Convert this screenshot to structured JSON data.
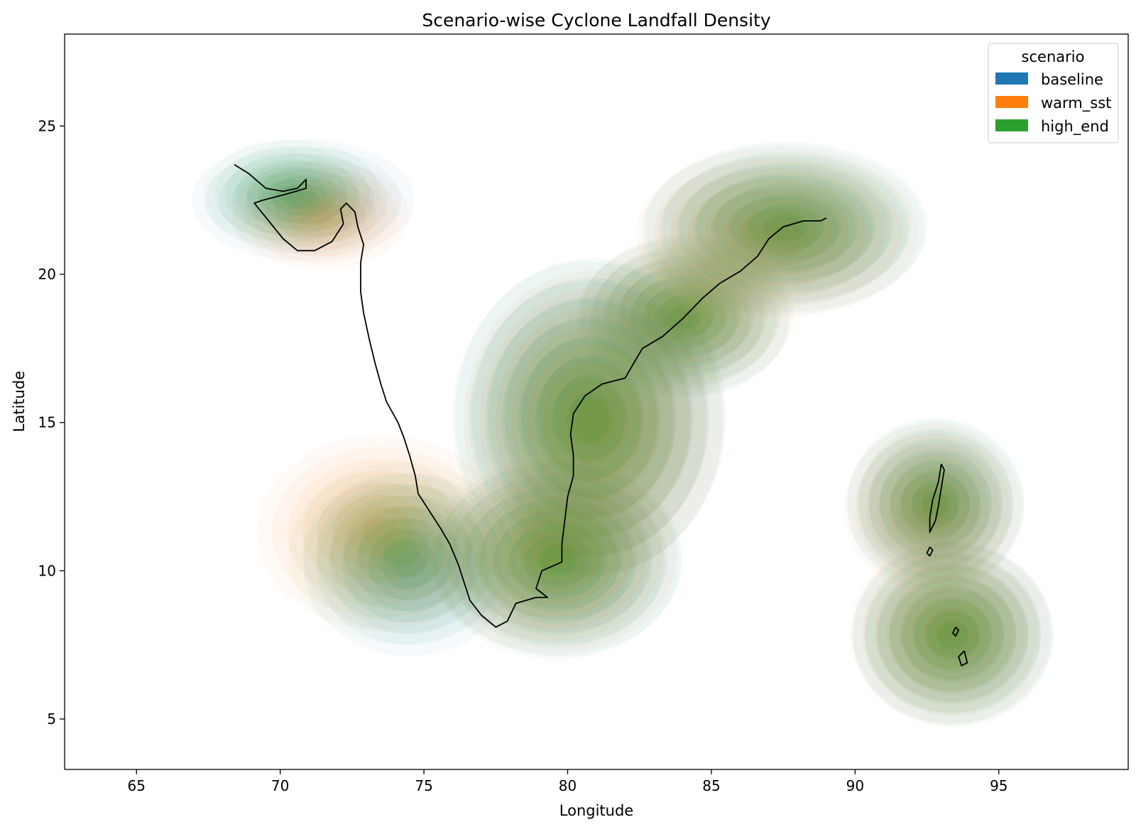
{
  "chart_data": {
    "type": "kde-density-map",
    "title": "Scenario-wise Cyclone Landfall Density",
    "xlabel": "Longitude",
    "ylabel": "Latitude",
    "xlim": [
      62.5,
      99.5
    ],
    "ylim": [
      3.3,
      28.1
    ],
    "xticks": [
      65,
      70,
      75,
      80,
      85,
      90,
      95
    ],
    "yticks": [
      5,
      10,
      15,
      20,
      25
    ],
    "grid": false,
    "legend": {
      "title": "scenario",
      "placement": "top-right",
      "entries": [
        "baseline",
        "warm_sst",
        "high_end"
      ]
    },
    "series": [
      {
        "name": "baseline",
        "color": "#1f77b4",
        "clusters": [
          {
            "lon": 70.8,
            "lat": 22.5,
            "sx": 1.9,
            "sy": 1.0,
            "weight": 0.5
          },
          {
            "lon": 80.8,
            "lat": 15.2,
            "sx": 2.3,
            "sy": 2.6,
            "weight": 1.0
          },
          {
            "lon": 79.7,
            "lat": 10.4,
            "sx": 2.1,
            "sy": 1.6,
            "weight": 0.8
          },
          {
            "lon": 87.5,
            "lat": 21.5,
            "sx": 2.4,
            "sy": 1.4,
            "weight": 0.75
          },
          {
            "lon": 84.0,
            "lat": 18.5,
            "sx": 1.8,
            "sy": 1.3,
            "weight": 0.6
          },
          {
            "lon": 74.5,
            "lat": 10.2,
            "sx": 1.8,
            "sy": 1.5,
            "weight": 0.45
          },
          {
            "lon": 92.8,
            "lat": 12.2,
            "sx": 1.5,
            "sy": 1.4,
            "weight": 0.7
          },
          {
            "lon": 93.4,
            "lat": 7.9,
            "sx": 1.7,
            "sy": 1.5,
            "weight": 0.85
          }
        ]
      },
      {
        "name": "warm_sst",
        "color": "#ff7f0e",
        "clusters": [
          {
            "lon": 71.4,
            "lat": 22.0,
            "sx": 1.5,
            "sy": 0.9,
            "weight": 0.5
          },
          {
            "lon": 80.9,
            "lat": 15.0,
            "sx": 2.2,
            "sy": 2.5,
            "weight": 1.0
          },
          {
            "lon": 79.5,
            "lat": 10.5,
            "sx": 2.1,
            "sy": 1.6,
            "weight": 0.8
          },
          {
            "lon": 87.3,
            "lat": 21.4,
            "sx": 2.4,
            "sy": 1.4,
            "weight": 0.75
          },
          {
            "lon": 84.2,
            "lat": 18.7,
            "sx": 1.8,
            "sy": 1.3,
            "weight": 0.6
          },
          {
            "lon": 73.5,
            "lat": 11.3,
            "sx": 2.1,
            "sy": 1.6,
            "weight": 0.5
          },
          {
            "lon": 92.7,
            "lat": 12.1,
            "sx": 1.5,
            "sy": 1.4,
            "weight": 0.7
          },
          {
            "lon": 93.3,
            "lat": 7.9,
            "sx": 1.7,
            "sy": 1.5,
            "weight": 0.85
          }
        ]
      },
      {
        "name": "high_end",
        "color": "#2ca02c",
        "clusters": [
          {
            "lon": 70.4,
            "lat": 22.7,
            "sx": 1.5,
            "sy": 0.9,
            "weight": 0.5
          },
          {
            "lon": 80.7,
            "lat": 15.1,
            "sx": 2.3,
            "sy": 2.6,
            "weight": 1.0
          },
          {
            "lon": 79.6,
            "lat": 10.3,
            "sx": 2.1,
            "sy": 1.6,
            "weight": 0.8
          },
          {
            "lon": 87.6,
            "lat": 21.6,
            "sx": 2.4,
            "sy": 1.4,
            "weight": 0.75
          },
          {
            "lon": 84.1,
            "lat": 18.6,
            "sx": 1.8,
            "sy": 1.3,
            "weight": 0.6
          },
          {
            "lon": 74.2,
            "lat": 10.6,
            "sx": 1.9,
            "sy": 1.5,
            "weight": 0.45
          },
          {
            "lon": 92.8,
            "lat": 12.3,
            "sx": 1.5,
            "sy": 1.4,
            "weight": 0.7
          },
          {
            "lon": 93.4,
            "lat": 7.8,
            "sx": 1.7,
            "sy": 1.5,
            "weight": 0.85
          }
        ]
      }
    ],
    "coastline": [
      [
        [
          68.4,
          23.7
        ],
        [
          68.9,
          23.4
        ],
        [
          69.5,
          22.9
        ],
        [
          70.1,
          22.8
        ],
        [
          70.6,
          22.9
        ],
        [
          70.9,
          23.2
        ],
        [
          70.9,
          22.9
        ],
        [
          70.2,
          22.7
        ],
        [
          69.4,
          22.5
        ],
        [
          69.1,
          22.4
        ],
        [
          69.6,
          21.8
        ],
        [
          70.1,
          21.2
        ],
        [
          70.6,
          20.8
        ],
        [
          71.2,
          20.8
        ],
        [
          71.8,
          21.1
        ],
        [
          72.2,
          21.7
        ],
        [
          72.1,
          22.2
        ],
        [
          72.3,
          22.4
        ],
        [
          72.6,
          22.1
        ],
        [
          72.7,
          21.6
        ],
        [
          72.9,
          21.0
        ],
        [
          72.8,
          20.4
        ],
        [
          72.8,
          19.4
        ],
        [
          72.9,
          18.7
        ],
        [
          73.1,
          17.8
        ],
        [
          73.3,
          17.0
        ],
        [
          73.5,
          16.3
        ],
        [
          73.7,
          15.7
        ],
        [
          74.1,
          15.0
        ],
        [
          74.3,
          14.5
        ],
        [
          74.5,
          13.9
        ],
        [
          74.7,
          13.2
        ],
        [
          74.8,
          12.6
        ],
        [
          75.2,
          12.0
        ],
        [
          75.6,
          11.4
        ],
        [
          75.9,
          10.9
        ],
        [
          76.2,
          10.2
        ],
        [
          76.4,
          9.6
        ],
        [
          76.6,
          9.0
        ],
        [
          77.0,
          8.5
        ],
        [
          77.5,
          8.1
        ],
        [
          77.9,
          8.3
        ],
        [
          78.2,
          8.9
        ],
        [
          78.9,
          9.1
        ],
        [
          79.3,
          9.1
        ],
        [
          78.9,
          9.4
        ],
        [
          79.1,
          10.0
        ],
        [
          79.8,
          10.3
        ],
        [
          79.8,
          10.9
        ],
        [
          79.9,
          11.7
        ],
        [
          80.0,
          12.5
        ],
        [
          80.2,
          13.2
        ],
        [
          80.2,
          13.9
        ],
        [
          80.1,
          14.6
        ],
        [
          80.2,
          15.3
        ],
        [
          80.6,
          15.9
        ],
        [
          81.2,
          16.3
        ],
        [
          82.0,
          16.5
        ],
        [
          82.3,
          17.0
        ],
        [
          82.6,
          17.5
        ],
        [
          83.3,
          17.9
        ],
        [
          84.0,
          18.5
        ],
        [
          84.7,
          19.2
        ],
        [
          85.3,
          19.7
        ],
        [
          86.0,
          20.1
        ],
        [
          86.6,
          20.6
        ],
        [
          87.0,
          21.2
        ],
        [
          87.5,
          21.6
        ],
        [
          88.2,
          21.8
        ],
        [
          88.8,
          21.8
        ],
        [
          89.0,
          21.9
        ]
      ],
      [
        [
          93.0,
          13.6
        ],
        [
          92.9,
          13.0
        ],
        [
          92.7,
          12.4
        ],
        [
          92.6,
          11.8
        ],
        [
          92.6,
          11.3
        ],
        [
          92.8,
          11.7
        ],
        [
          92.9,
          12.2
        ],
        [
          93.0,
          12.8
        ],
        [
          93.1,
          13.4
        ],
        [
          93.0,
          13.6
        ]
      ],
      [
        [
          92.6,
          10.8
        ],
        [
          92.5,
          10.6
        ],
        [
          92.6,
          10.5
        ],
        [
          92.7,
          10.7
        ],
        [
          92.6,
          10.8
        ]
      ],
      [
        [
          93.8,
          7.3
        ],
        [
          93.6,
          7.1
        ],
        [
          93.7,
          6.8
        ],
        [
          93.9,
          6.9
        ],
        [
          93.8,
          7.3
        ]
      ],
      [
        [
          93.5,
          8.1
        ],
        [
          93.4,
          7.9
        ],
        [
          93.5,
          7.8
        ],
        [
          93.6,
          8.0
        ],
        [
          93.5,
          8.1
        ]
      ]
    ]
  }
}
